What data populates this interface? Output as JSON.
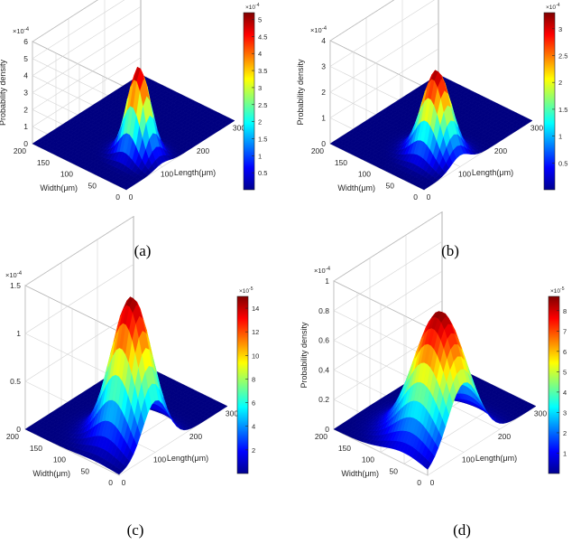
{
  "chart_data": [
    {
      "panel": "a",
      "caption": "(a)",
      "type": "surface",
      "xlabel": "Length(μm)",
      "ylabel": "Width(μm)",
      "zlabel": "Probability density",
      "z_exponent_label": "×10",
      "z_exponent": "-4",
      "xlim": [
        0,
        300
      ],
      "ylim": [
        0,
        200
      ],
      "zlim": [
        0,
        6
      ],
      "x_ticks": [
        "0",
        "100",
        "200",
        "300"
      ],
      "y_ticks": [
        "0",
        "50",
        "100",
        "150",
        "200"
      ],
      "z_ticks": [
        "0",
        "1",
        "2",
        "3",
        "4",
        "5",
        "6"
      ],
      "peak": {
        "x": 100,
        "y": 50,
        "z": 5.2,
        "sigma_x": 20,
        "sigma_y": 20
      },
      "colorbar": {
        "range": [
          0,
          5.2
        ],
        "exponent_label": "×10",
        "exponent": "-4",
        "ticks": [
          {
            "value": 0.5,
            "label": "0.5"
          },
          {
            "value": 1,
            "label": "1"
          },
          {
            "value": 1.5,
            "label": "1.5"
          },
          {
            "value": 2,
            "label": "2"
          },
          {
            "value": 2.5,
            "label": "2.5"
          },
          {
            "value": 3,
            "label": "3"
          },
          {
            "value": 3.5,
            "label": "3.5"
          },
          {
            "value": 4,
            "label": "4"
          },
          {
            "value": 4.5,
            "label": "4.5"
          },
          {
            "value": 5,
            "label": "5"
          }
        ]
      }
    },
    {
      "panel": "b",
      "caption": "(b)",
      "type": "surface",
      "xlabel": "Length(μm)",
      "ylabel": "Width(μm)",
      "zlabel": "Probability density",
      "z_exponent_label": "×10",
      "z_exponent": "-4",
      "xlim": [
        0,
        300
      ],
      "ylim": [
        0,
        200
      ],
      "zlim": [
        0,
        4
      ],
      "x_ticks": [
        "0",
        "100",
        "200",
        "300"
      ],
      "y_ticks": [
        "0",
        "50",
        "100",
        "150",
        "200"
      ],
      "z_ticks": [
        "0",
        "1",
        "2",
        "3",
        "4"
      ],
      "peak": {
        "x": 100,
        "y": 50,
        "z": 3.3,
        "sigma_x": 25,
        "sigma_y": 25
      },
      "colorbar": {
        "range": [
          0,
          3.3
        ],
        "exponent_label": "×10",
        "exponent": "-4",
        "ticks": [
          {
            "value": 0.5,
            "label": "0.5"
          },
          {
            "value": 1,
            "label": "1"
          },
          {
            "value": 1.5,
            "label": "1.5"
          },
          {
            "value": 2,
            "label": "2"
          },
          {
            "value": 2.5,
            "label": "2.5"
          },
          {
            "value": 3,
            "label": "3"
          }
        ]
      }
    },
    {
      "panel": "c",
      "caption": "(c)",
      "type": "surface",
      "xlabel": "Length(μm)",
      "ylabel": "Width(μm)",
      "zlabel": "Probability density",
      "z_exponent_label": "×10",
      "z_exponent": "-4",
      "xlim": [
        0,
        300
      ],
      "ylim": [
        0,
        200
      ],
      "zlim": [
        0,
        1.5
      ],
      "x_ticks": [
        "0",
        "100",
        "200",
        "300"
      ],
      "y_ticks": [
        "0",
        "50",
        "100",
        "150",
        "200"
      ],
      "z_ticks": [
        "0",
        "0.5",
        "1",
        "1.5"
      ],
      "peak": {
        "x": 100,
        "y": 50,
        "z": 1.5,
        "sigma_x": 35,
        "sigma_y": 35
      },
      "colorbar": {
        "range": [
          0,
          15
        ],
        "exponent_label": "×10",
        "exponent": "-5",
        "ticks": [
          {
            "value": 2,
            "label": "2"
          },
          {
            "value": 4,
            "label": "4"
          },
          {
            "value": 6,
            "label": "6"
          },
          {
            "value": 8,
            "label": "8"
          },
          {
            "value": 10,
            "label": "10"
          },
          {
            "value": 12,
            "label": "12"
          },
          {
            "value": 14,
            "label": "14"
          }
        ]
      }
    },
    {
      "panel": "d",
      "caption": "(d)",
      "type": "surface",
      "xlabel": "Length(μm)",
      "ylabel": "Width(μm)",
      "zlabel": "Probability density",
      "z_exponent_label": "×10",
      "z_exponent": "-4",
      "xlim": [
        0,
        300
      ],
      "ylim": [
        0,
        200
      ],
      "zlim": [
        0,
        1
      ],
      "x_ticks": [
        "0",
        "100",
        "200",
        "300"
      ],
      "y_ticks": [
        "0",
        "50",
        "100",
        "150",
        "200"
      ],
      "z_ticks": [
        "0",
        "0.2",
        "0.4",
        "0.6",
        "0.8",
        "1"
      ],
      "peak": {
        "x": 100,
        "y": 50,
        "z": 0.87,
        "sigma_x": 45,
        "sigma_y": 45
      },
      "colorbar": {
        "range": [
          0,
          8.7
        ],
        "exponent_label": "×10",
        "exponent": "-5",
        "ticks": [
          {
            "value": 1,
            "label": "1"
          },
          {
            "value": 2,
            "label": "2"
          },
          {
            "value": 3,
            "label": "3"
          },
          {
            "value": 4,
            "label": "4"
          },
          {
            "value": 5,
            "label": "5"
          },
          {
            "value": 6,
            "label": "6"
          },
          {
            "value": 7,
            "label": "7"
          },
          {
            "value": 8,
            "label": "8"
          }
        ]
      }
    }
  ]
}
